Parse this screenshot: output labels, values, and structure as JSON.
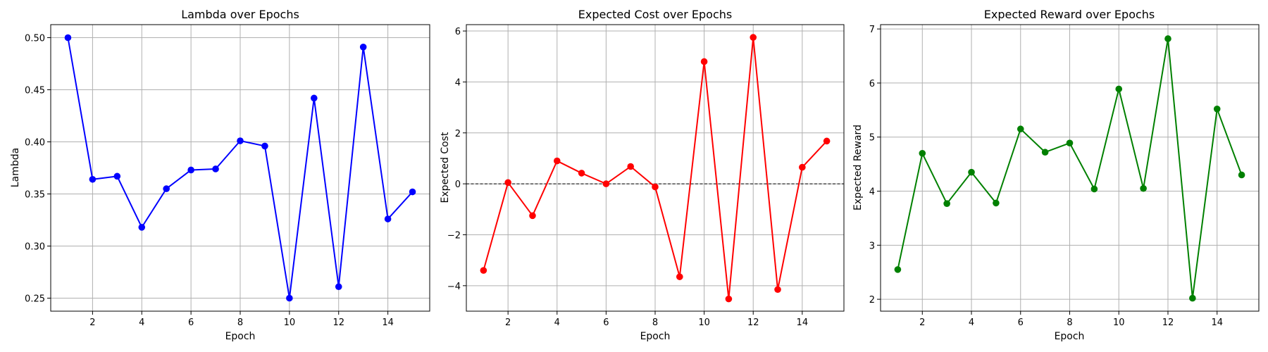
{
  "chart_data": [
    {
      "type": "line",
      "title": "Lambda over Epochs",
      "xlabel": "Epoch",
      "ylabel": "Lambda",
      "x": [
        1,
        2,
        3,
        4,
        5,
        6,
        7,
        8,
        9,
        10,
        11,
        12,
        13,
        14,
        15
      ],
      "series": [
        {
          "values": [
            0.5,
            0.364,
            0.367,
            0.318,
            0.355,
            0.373,
            0.374,
            0.401,
            0.396,
            0.25,
            0.442,
            0.261,
            0.491,
            0.326,
            0.352
          ],
          "color": "#0000ff",
          "marker": "circle"
        }
      ],
      "xlim": [
        0.3,
        15.7
      ],
      "ylim": [
        0.2375,
        0.5125
      ],
      "xticks": [
        2,
        4,
        6,
        8,
        10,
        12,
        14
      ],
      "yticks": [
        0.25,
        0.3,
        0.35,
        0.4,
        0.45,
        0.5
      ],
      "ytick_labels": [
        "0.25",
        "0.30",
        "0.35",
        "0.40",
        "0.45",
        "0.50"
      ],
      "grid": true
    },
    {
      "type": "line",
      "title": "Expected Cost over Epochs",
      "xlabel": "Epoch",
      "ylabel": "Expected Cost",
      "x": [
        1,
        2,
        3,
        4,
        5,
        6,
        7,
        8,
        9,
        10,
        11,
        12,
        13,
        14,
        15
      ],
      "series": [
        {
          "values": [
            -3.4,
            0.05,
            -1.25,
            0.9,
            0.42,
            0.0,
            0.68,
            -0.12,
            -3.65,
            4.8,
            -4.52,
            5.75,
            -4.15,
            0.65,
            1.68
          ],
          "color": "#ff0000",
          "marker": "circle"
        }
      ],
      "reference_line": {
        "y": 0,
        "style": "dashed",
        "color": "#000000"
      },
      "xlim": [
        0.3,
        15.7
      ],
      "ylim": [
        -5.0,
        6.25
      ],
      "xticks": [
        2,
        4,
        6,
        8,
        10,
        12,
        14
      ],
      "yticks": [
        -4,
        -2,
        0,
        2,
        4,
        6
      ],
      "ytick_labels": [
        "−4",
        "−2",
        "0",
        "2",
        "4",
        "6"
      ],
      "grid": true
    },
    {
      "type": "line",
      "title": "Expected Reward over Epochs",
      "xlabel": "Epoch",
      "ylabel": "Expected Reward",
      "x": [
        1,
        2,
        3,
        4,
        5,
        6,
        7,
        8,
        9,
        10,
        11,
        12,
        13,
        14,
        15
      ],
      "series": [
        {
          "values": [
            2.55,
            4.7,
            3.77,
            4.35,
            3.78,
            5.15,
            4.72,
            4.89,
            4.04,
            5.89,
            4.05,
            6.82,
            2.02,
            5.52,
            4.3
          ],
          "color": "#008000",
          "marker": "circle"
        }
      ],
      "xlim": [
        0.3,
        15.7
      ],
      "ylim": [
        1.78,
        7.08
      ],
      "xticks": [
        2,
        4,
        6,
        8,
        10,
        12,
        14
      ],
      "yticks": [
        2,
        3,
        4,
        5,
        6,
        7
      ],
      "ytick_labels": [
        "2",
        "3",
        "4",
        "5",
        "6",
        "7"
      ],
      "grid": true
    }
  ]
}
